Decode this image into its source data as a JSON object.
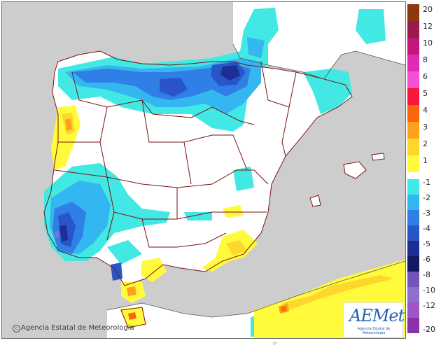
{
  "map": {
    "credit": "Agencia Estatal de Meteorología",
    "copyright_symbol": "c",
    "small_label": "0°"
  },
  "logo": {
    "text": "AEMet",
    "subtitle": "Agencia Estatal de Meteorología"
  },
  "legend": {
    "ticks": [
      "20",
      "12",
      "10",
      "8",
      "6",
      "5",
      "4",
      "3",
      "2",
      "1",
      "-1",
      "-2",
      "-3",
      "-4",
      "-5",
      "-6",
      "-8",
      "-10",
      "-12",
      "-20"
    ],
    "colors": {
      "c20": "#8b3a0e",
      "c12": "#9b1b4a",
      "c10": "#c4177e",
      "c8": "#e22ab4",
      "c6": "#f54fd6",
      "c5": "#f7163c",
      "c4": "#fb6510",
      "c3": "#fda21a",
      "c2": "#fed72c",
      "c1": "#fffb3c",
      "neutral": "#ffffff",
      "m1": "#42e8e3",
      "m2": "#34b6f0",
      "m3": "#2f7fe6",
      "m4": "#2a55c8",
      "m5": "#1d2f97",
      "m6": "#111a60",
      "m8": "#7454b8",
      "m10": "#8f6fcc",
      "m12": "#9f55c8",
      "m20": "#8a32a8"
    }
  }
}
